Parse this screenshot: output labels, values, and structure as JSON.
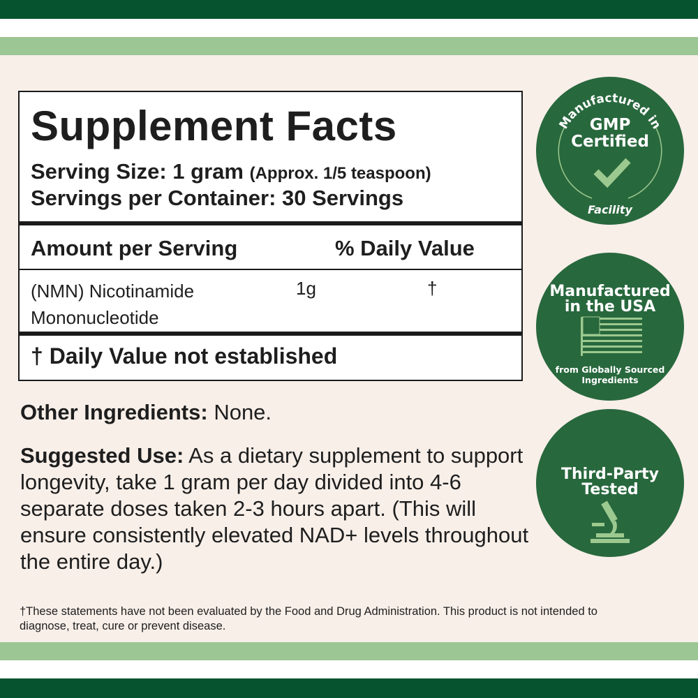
{
  "colors": {
    "dark_green": "#05542f",
    "light_green": "#9cc693",
    "badge_green": "#28683d",
    "accent_light": "#9cc98f",
    "background": "#f8efe9"
  },
  "facts": {
    "title": "Supplement Facts",
    "serving_size_label": "Serving Size: 1 gram",
    "serving_size_note": "(Approx. 1/5 teaspoon)",
    "servings_per_container": "Servings per Container: 30 Servings",
    "col_amount": "Amount per Serving",
    "col_dv": "% Daily Value",
    "rows": [
      {
        "name_line1": "(NMN) Nicotinamide",
        "name_line2": "Mononucleotide",
        "amount": "1g",
        "dv": "†"
      }
    ],
    "footnote": "† Daily Value not established"
  },
  "other_ingredients": {
    "label": "Other Ingredients:",
    "value": " None."
  },
  "suggested_use": {
    "label": "Suggested Use:",
    "text": " As a dietary supplement to support longevity, take 1 gram per day divided into 4-6 separate doses taken 2-3 hours apart. (This will ensure consistently elevated NAD+ levels throughout the entire day.)"
  },
  "disclaimer": "†These statements have not been evaluated by the Food and Drug Administration. This product is not intended to diagnose, treat, cure or prevent disease.",
  "badges": [
    {
      "arc_top": "Manufactured in",
      "line1": "GMP",
      "line2": "Certified",
      "arc_bottom": "Facility",
      "icon": "checkmark-icon"
    },
    {
      "line1": "Manufactured",
      "line2": "in the USA",
      "sub1": "from Globally Sourced",
      "sub2": "Ingredients",
      "icon": "us-flag-icon"
    },
    {
      "line1": "Third-Party",
      "line2": "Tested",
      "icon": "microscope-icon"
    }
  ]
}
